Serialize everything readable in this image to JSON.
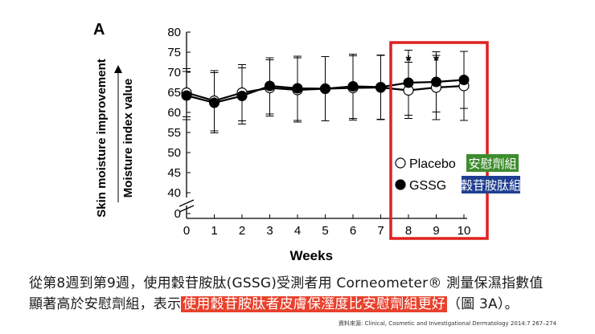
{
  "chart_data": {
    "type": "line",
    "panel_label": "A",
    "xlabel": "Weeks",
    "ylabel_outer": "Skin moisture improvement",
    "ylabel_inner": "Moisture index value",
    "x": [
      0,
      1,
      2,
      3,
      4,
      5,
      6,
      7,
      8,
      9,
      10
    ],
    "xlim": [
      0,
      10
    ],
    "ylim": [
      40,
      80
    ],
    "yticks": [
      0,
      40,
      45,
      50,
      55,
      60,
      65,
      70,
      75,
      80
    ],
    "axis_break": true,
    "series": [
      {
        "name": "Placebo",
        "legend_tag": "安慰劑組",
        "marker": "open-circle",
        "values": [
          64.9,
          62.9,
          64.9,
          66.1,
          65.6,
          65.9,
          66.1,
          66.2,
          65.5,
          66.2,
          66.6
        ],
        "error": [
          6,
          7.5,
          7,
          7,
          8,
          8,
          8,
          8,
          7,
          8,
          8.6
        ]
      },
      {
        "name": "GSSG",
        "legend_tag": "穀苷胺肽組",
        "marker": "filled-circle",
        "values": [
          64.2,
          62.4,
          64.1,
          66.6,
          66.0,
          65.9,
          66.5,
          66.3,
          67.4,
          67.6,
          68.1
        ],
        "error": [
          6,
          7.5,
          7,
          7,
          8,
          8,
          8,
          8,
          8.1,
          7.5,
          7.1
        ]
      }
    ],
    "significance_marks": [
      {
        "x": 8,
        "label": "*"
      },
      {
        "x": 9,
        "label": "*"
      }
    ],
    "highlight_x_range": [
      8,
      10
    ],
    "legend_tag_colors": {
      "Placebo": "#3d8c2e",
      "GSSG": "#1f3f91"
    },
    "highlight_color": "#e02020"
  },
  "caption": {
    "line1": "從第8週到第9週，使用穀苷胺肽(GSSG)受測者用 Corneometer® 測量保濕指數值",
    "line2_pre": "顯著高於安慰劑組，表示",
    "line2_highlight": "使用穀苷胺肽者皮膚保溼度比安慰劑組更好",
    "line2_post": "（圖 3A）。",
    "highlight_color": "#e8412c"
  },
  "source": "資料來源: Clinical, Cosmetic and Investigational Dermatology 2014:7 267–274"
}
